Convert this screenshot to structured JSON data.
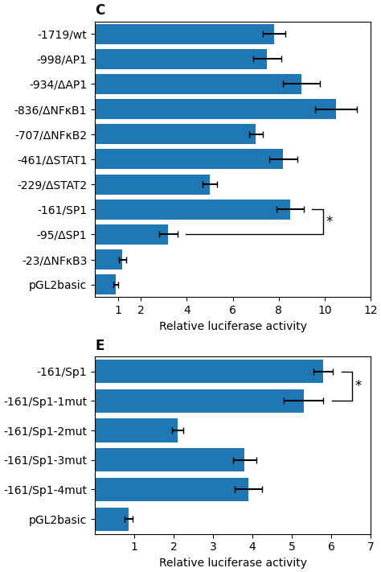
{
  "chart_data": [
    {
      "type": "bar",
      "orientation": "horizontal",
      "title": "C",
      "categories": [
        "-1719/wt",
        "-998/AP1",
        "-934/ΔAP1",
        "-836/ΔNFκB1",
        "-707/ΔNFκB2",
        "-461/ΔSTAT1",
        "-229/ΔSTAT2",
        "-161/SP1",
        "-95/ΔSP1",
        "-23/ΔNFκB3",
        "pGL2basic"
      ],
      "values": [
        7.8,
        7.5,
        9.0,
        10.5,
        7.0,
        8.2,
        5.0,
        8.5,
        3.2,
        1.2,
        0.9
      ],
      "errors": [
        0.5,
        0.6,
        0.8,
        0.9,
        0.3,
        0.6,
        0.3,
        0.6,
        0.4,
        0.15,
        0.1
      ],
      "xlim": [
        0,
        12
      ],
      "xticks": [
        1,
        2,
        4,
        6,
        8,
        10,
        12
      ],
      "xlabel": "Relative luciferase activity",
      "annotations": [
        {
          "text": "*",
          "categories": [
            "-161/SP1",
            "-95/ΔSP1"
          ]
        }
      ]
    },
    {
      "type": "bar",
      "orientation": "horizontal",
      "title": "E",
      "categories": [
        "-161/Sp1",
        "-161/Sp1-1mut",
        "-161/Sp1-2mut",
        "-161/Sp1-3mut",
        "-161/Sp1-4mut",
        "pGL2basic"
      ],
      "values": [
        5.8,
        5.3,
        2.1,
        3.8,
        3.9,
        0.85
      ],
      "errors": [
        0.25,
        0.5,
        0.15,
        0.3,
        0.35,
        0.1
      ],
      "xlim": [
        0,
        7
      ],
      "xticks": [
        1,
        2,
        3,
        4,
        5,
        6,
        7
      ],
      "xlabel": "Relative luciferase activity",
      "annotations": [
        {
          "text": "*",
          "categories": [
            "-161/Sp1",
            "-161/Sp1-1mut"
          ]
        }
      ]
    }
  ]
}
